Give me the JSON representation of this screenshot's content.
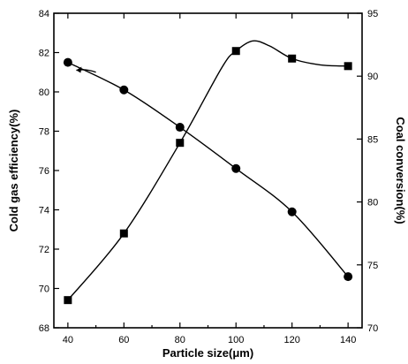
{
  "chart_data": {
    "type": "line",
    "xlabel": "Particle size(μm)",
    "ylabel": "Cold gas efficiency(%)",
    "y2label": "Coal conversion(%)",
    "xlim": [
      35,
      145
    ],
    "ylim": [
      68,
      84
    ],
    "y2lim": [
      70,
      95
    ],
    "xticks": [
      40,
      60,
      80,
      100,
      120,
      140
    ],
    "yticks": [
      68,
      70,
      72,
      74,
      76,
      78,
      80,
      82,
      84
    ],
    "y2ticks": [
      70,
      75,
      80,
      85,
      90,
      95
    ],
    "x": [
      40,
      60,
      80,
      100,
      120,
      140
    ],
    "series": [
      {
        "axis": "left",
        "marker": "circle",
        "values": [
          81.5,
          80.1,
          78.2,
          76.1,
          73.9,
          70.6
        ]
      },
      {
        "axis": "right",
        "marker": "square",
        "values": [
          72.2,
          77.5,
          84.7,
          92.0,
          91.4,
          90.8
        ],
        "smooth_points": [
          [
            40,
            72.2
          ],
          [
            60,
            77.5
          ],
          [
            80,
            84.7
          ],
          [
            95,
            90.7
          ],
          [
            100,
            92.0
          ],
          [
            106,
            92.8
          ],
          [
            112,
            92.4
          ],
          [
            120,
            91.4
          ],
          [
            130,
            90.9
          ],
          [
            140,
            90.8
          ]
        ]
      }
    ],
    "grid": false,
    "legend": "none",
    "annotation_arrow": {
      "from": [
        50,
        81.0
      ],
      "to": [
        43,
        81.1
      ]
    }
  }
}
